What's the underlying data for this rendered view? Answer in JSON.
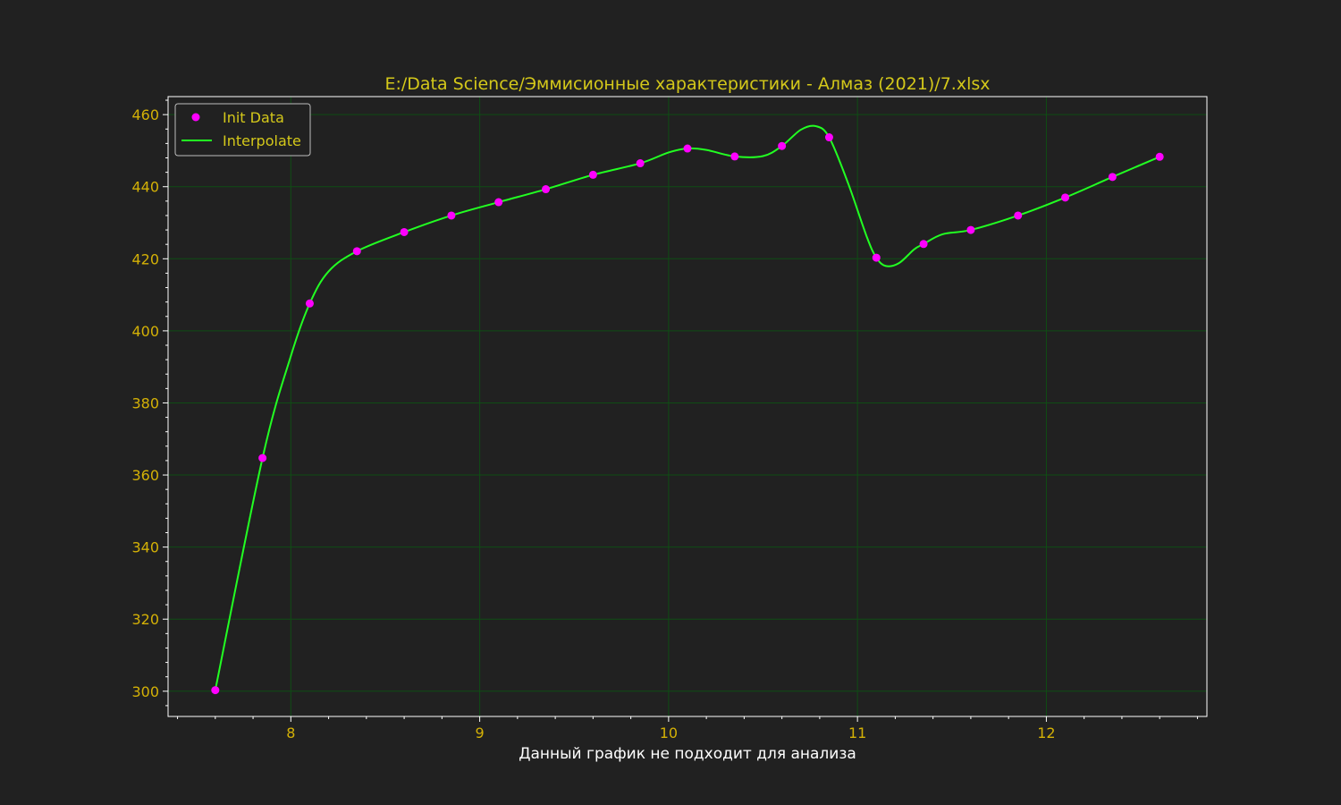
{
  "colors": {
    "background": "#212121",
    "axes_frame": "#ffffff",
    "tick_text": "#d4b106",
    "title_text": "#d4c81a",
    "xlabel_text": "#ffffff",
    "grid": "#0f4d14",
    "points": "#ff00ff",
    "line": "#22ff22",
    "legend_text": "#d4c81a",
    "legend_border": "#bdbdbd"
  },
  "chart_data": {
    "type": "line",
    "title": "E:/Data Science/Эммисионные характеристики - Алмаз (2021)/7.xlsx",
    "xlabel": "Данный график не подходит для анализа",
    "ylabel": "",
    "xlim": [
      7.35,
      12.85
    ],
    "ylim": [
      293,
      465
    ],
    "x_ticks": [
      8,
      9,
      10,
      11,
      12
    ],
    "y_ticks": [
      300,
      320,
      340,
      360,
      380,
      400,
      420,
      440,
      460
    ],
    "grid": true,
    "legend_position": "top-left",
    "series": [
      {
        "name": "Init Data",
        "kind": "scatter",
        "x": [
          7.6,
          7.85,
          8.1,
          8.35,
          8.6,
          8.85,
          9.1,
          9.35,
          9.6,
          9.85,
          10.1,
          10.35,
          10.6,
          10.85,
          11.1,
          11.35,
          11.6,
          11.85,
          12.1,
          12.35,
          12.6
        ],
        "y": [
          300.3,
          364.7,
          407.6,
          422.1,
          427.4,
          432.0,
          435.7,
          439.3,
          443.3,
          446.5,
          450.6,
          448.4,
          451.3,
          453.7,
          420.3,
          424.1,
          428.0,
          432.0,
          437.0,
          442.7,
          448.3
        ]
      },
      {
        "name": "Interpolate",
        "kind": "line",
        "x": [
          7.6,
          7.85,
          8.0,
          8.1,
          8.2,
          8.35,
          8.6,
          8.85,
          9.1,
          9.35,
          9.6,
          9.85,
          10.0,
          10.1,
          10.2,
          10.35,
          10.5,
          10.6,
          10.7,
          10.78,
          10.85,
          10.95,
          11.05,
          11.1,
          11.15,
          11.22,
          11.3,
          11.35,
          11.45,
          11.6,
          11.85,
          12.1,
          12.35,
          12.6
        ],
        "y": [
          300.3,
          364.7,
          393.0,
          407.6,
          416.5,
          422.1,
          427.4,
          432.0,
          435.7,
          439.3,
          443.3,
          446.5,
          449.5,
          450.6,
          450.2,
          448.4,
          448.5,
          451.3,
          455.8,
          456.8,
          453.7,
          441.0,
          426.0,
          420.3,
          418.0,
          418.8,
          422.6,
          424.1,
          426.8,
          428.0,
          432.0,
          437.0,
          442.7,
          448.3
        ]
      }
    ]
  }
}
